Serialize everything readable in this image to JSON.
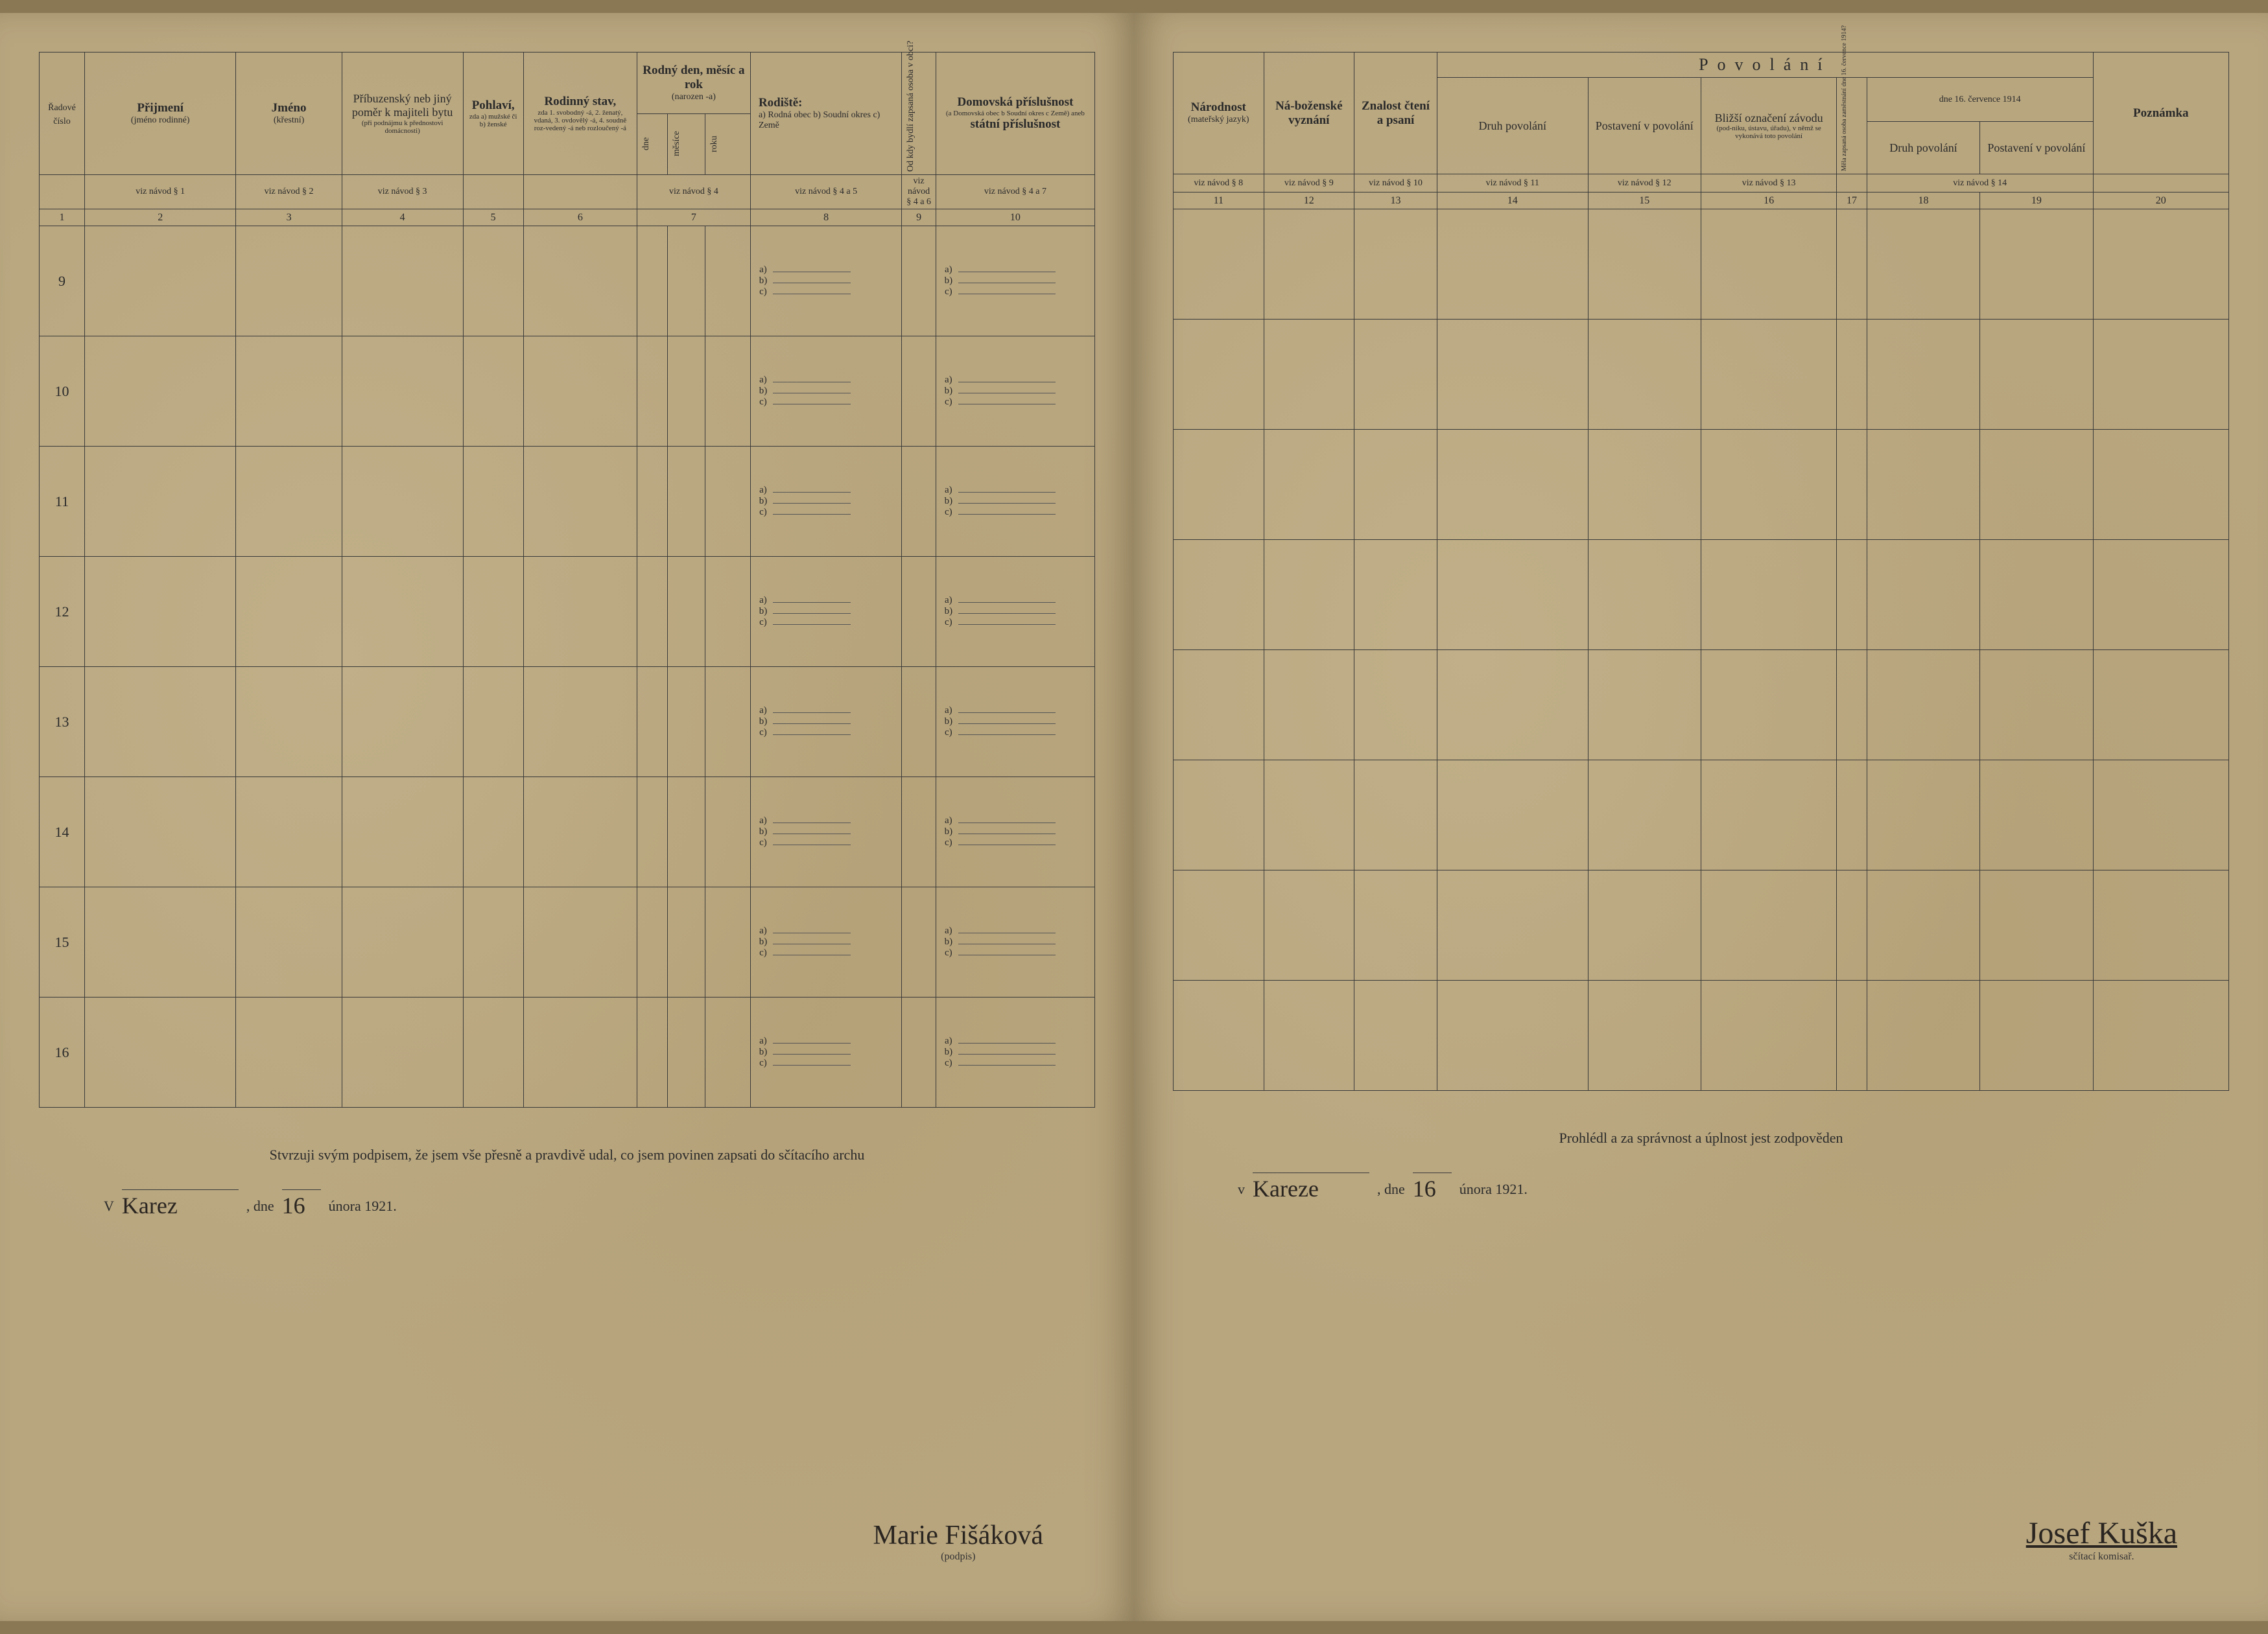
{
  "colors": {
    "paper": "#b8a67f",
    "ink": "#2a2a2a",
    "rule": "#3a3a3a",
    "background": "#8a7855"
  },
  "left": {
    "headers": {
      "col1": "Řadové číslo",
      "col2": {
        "bold": "Přijmení",
        "sub": "(jméno rodinné)"
      },
      "col3": {
        "bold": "Jméno",
        "sub": "(křestní)"
      },
      "col4": {
        "bold": "Příbuzenský neb jiný poměr k majiteli bytu",
        "sub": "(při podnájmu k přednostovi domácnosti)"
      },
      "col5": {
        "bold": "Pohlaví,",
        "sub": "zda a) mužské či b) ženské"
      },
      "col6": {
        "bold": "Rodinný stav,",
        "sub": "zda 1. svobodný -á, 2. ženatý, vdaná, 3. ovdovělý -á, 4. soudně roz-vedený -á neb rozloučený -á"
      },
      "col7": {
        "bold": "Rodný den, měsíc a rok",
        "sub": "(narozen -a)",
        "sub_cols": [
          "dne",
          "měsíce",
          "roku"
        ]
      },
      "col8": {
        "bold": "Rodiště:",
        "sub": "a) Rodná obec b) Soudní okres c) Země"
      },
      "col9": "Od kdy bydlí zapsaná osoba v obci?",
      "col10": {
        "bold": "Domovská příslušnost",
        "sub": "(a Domovská obec b Soudní okres c Země) aneb",
        "bold2": "státní příslušnost"
      }
    },
    "nav_refs": [
      "",
      "viz návod § 1",
      "viz návod § 2",
      "viz návod § 3",
      "",
      "",
      "viz návod § 4",
      "viz návod § 4 a 5",
      "viz návod § 4 a 6",
      "viz návod § 4 a 7"
    ],
    "col_nums": [
      "1",
      "2",
      "3",
      "4",
      "5",
      "6",
      "7",
      "8",
      "9",
      "10"
    ],
    "row_nums": [
      "9",
      "10",
      "11",
      "12",
      "13",
      "14",
      "15",
      "16"
    ],
    "sub_labels": [
      "a)",
      "b)",
      "c)"
    ],
    "footer": {
      "statement": "Stvrzuji svým podpisem, že jsem vše přesně a pravdivě udal, co jsem povinen zapsati do sčítacího archu",
      "place_prefix": "V",
      "place_hand": "Karez",
      "date_prefix": ", dne",
      "date_hand": "16",
      "date_suffix": "února 1921.",
      "sig_hand": "Marie Fišáková",
      "sig_label": "(podpis)"
    }
  },
  "right": {
    "headers": {
      "col11": {
        "bold": "Národnost",
        "sub": "(mateřský jazyk)"
      },
      "col12": {
        "bold": "Ná-boženské vyznání"
      },
      "col13": {
        "bold": "Znalost čtení a psaní"
      },
      "povolani_title": "Povolání",
      "col14": "Druh povolání",
      "col15": "Postavení v povolání",
      "col16_top": "Bližší označení závodu",
      "col16_sub": "(pod-niku, ústavu, úřadu), v němž se vykonává toto povolání",
      "col17": "Měla zapsaná osoba zaměstnání dne 16. července 1914?",
      "date_line": "dne 16. července 1914",
      "col18": "Druh povolání",
      "col19": "Postavení v povolání",
      "col20": {
        "bold": "Poznámka"
      }
    },
    "nav_refs": [
      "viz návod § 8",
      "viz návod § 9",
      "viz návod § 10",
      "viz návod § 11",
      "viz návod § 12",
      "viz návod § 13",
      "",
      "viz návod § 14",
      "",
      ""
    ],
    "col_nums": [
      "11",
      "12",
      "13",
      "14",
      "15",
      "16",
      "17",
      "18",
      "19",
      "20"
    ],
    "row_count": 8,
    "footer": {
      "statement": "Prohlédl a za správnost a úplnost jest zodpověden",
      "place_prefix": "v",
      "place_hand": "Kareze",
      "date_prefix": ", dne",
      "date_hand": "16",
      "date_suffix": "února 1921.",
      "sig_hand": "Josef Kuška",
      "sig_label": "sčítací komisař."
    }
  }
}
